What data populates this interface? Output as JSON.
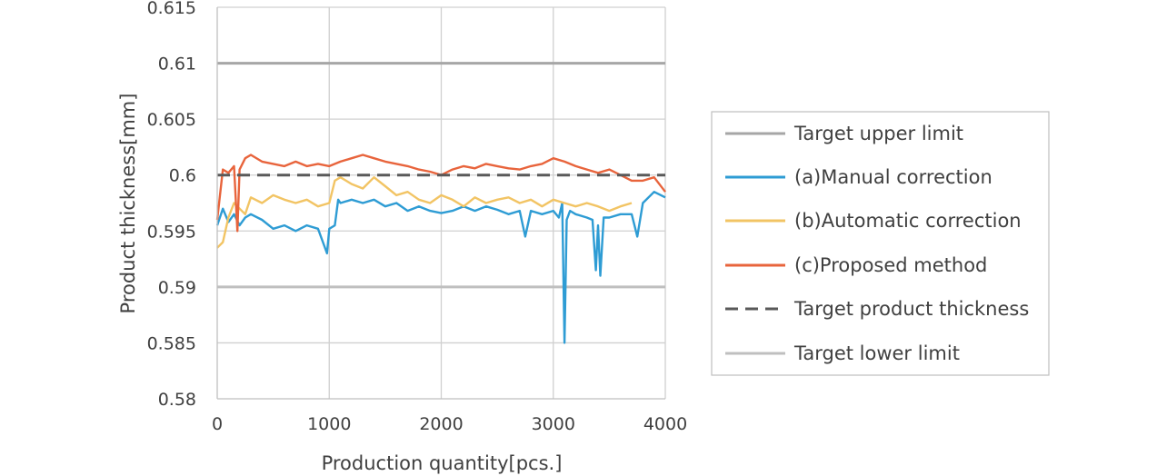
{
  "chart_data": {
    "type": "line",
    "title": "",
    "xlabel": "Production quantity[pcs.]",
    "ylabel": "Product thickness[mm]",
    "xlim": [
      0,
      4000
    ],
    "ylim": [
      0.58,
      0.615
    ],
    "x_ticks": [
      0,
      1000,
      2000,
      3000,
      4000
    ],
    "x_tick_labels": [
      "0",
      "1000",
      "2000",
      "3000",
      "4000"
    ],
    "y_ticks": [
      0.58,
      0.585,
      0.59,
      0.595,
      0.6,
      0.605,
      0.61,
      0.615
    ],
    "y_tick_labels": [
      "0.58",
      "0.585",
      "0.59",
      "0.595",
      "0.6",
      "0.605",
      "0.61",
      "0.615"
    ],
    "grid": true,
    "legend_position": "right",
    "series": [
      {
        "name": "Target upper limit",
        "style": "solid",
        "color": "#A6A6A6",
        "x": [
          0,
          4000
        ],
        "y": [
          0.61,
          0.61
        ]
      },
      {
        "name": "(a)Manual correction",
        "style": "solid",
        "color": "#2E9CD4",
        "x": [
          0,
          50,
          100,
          150,
          200,
          250,
          300,
          400,
          500,
          600,
          700,
          800,
          900,
          980,
          1000,
          1050,
          1080,
          1100,
          1200,
          1300,
          1400,
          1500,
          1600,
          1700,
          1800,
          1900,
          2000,
          2100,
          2200,
          2300,
          2400,
          2500,
          2600,
          2700,
          2750,
          2800,
          2900,
          3000,
          3050,
          3080,
          3100,
          3120,
          3150,
          3200,
          3300,
          3350,
          3380,
          3400,
          3420,
          3450,
          3500,
          3600,
          3700,
          3750,
          3800,
          3900,
          4000
        ],
        "y": [
          0.5955,
          0.597,
          0.5958,
          0.5965,
          0.5955,
          0.5962,
          0.5965,
          0.596,
          0.5952,
          0.5955,
          0.595,
          0.5955,
          0.5952,
          0.593,
          0.5952,
          0.5955,
          0.5978,
          0.5975,
          0.5978,
          0.5975,
          0.5978,
          0.5972,
          0.5975,
          0.5968,
          0.5972,
          0.5968,
          0.5966,
          0.5968,
          0.5972,
          0.5968,
          0.5972,
          0.5969,
          0.5965,
          0.5968,
          0.5945,
          0.5968,
          0.5965,
          0.5968,
          0.5962,
          0.5975,
          0.585,
          0.596,
          0.5968,
          0.5965,
          0.5962,
          0.596,
          0.5915,
          0.5955,
          0.591,
          0.5962,
          0.5962,
          0.5965,
          0.5965,
          0.5945,
          0.5975,
          0.5985,
          0.598
        ]
      },
      {
        "name": "(b)Automatic correction",
        "style": "solid",
        "color": "#F2C464",
        "x": [
          0,
          50,
          100,
          150,
          200,
          250,
          300,
          400,
          500,
          600,
          700,
          800,
          900,
          1000,
          1050,
          1100,
          1200,
          1300,
          1400,
          1500,
          1600,
          1700,
          1800,
          1900,
          2000,
          2100,
          2200,
          2300,
          2400,
          2500,
          2600,
          2700,
          2800,
          2900,
          3000,
          3100,
          3200,
          3300,
          3400,
          3500,
          3600,
          3700
        ],
        "y": [
          0.5935,
          0.594,
          0.5962,
          0.5975,
          0.597,
          0.5965,
          0.598,
          0.5975,
          0.5982,
          0.5978,
          0.5975,
          0.5978,
          0.5972,
          0.5975,
          0.5995,
          0.5998,
          0.5992,
          0.5988,
          0.5998,
          0.599,
          0.5982,
          0.5985,
          0.5978,
          0.5975,
          0.5982,
          0.5978,
          0.5972,
          0.598,
          0.5975,
          0.5978,
          0.598,
          0.5975,
          0.5978,
          0.5972,
          0.5978,
          0.5975,
          0.5972,
          0.5975,
          0.5972,
          0.5968,
          0.5972,
          0.5975
        ]
      },
      {
        "name": "(c)Proposed method",
        "style": "solid",
        "color": "#E8643C",
        "x": [
          0,
          50,
          100,
          150,
          180,
          200,
          250,
          300,
          400,
          500,
          600,
          700,
          800,
          900,
          1000,
          1100,
          1200,
          1300,
          1400,
          1500,
          1600,
          1700,
          1800,
          1900,
          2000,
          2100,
          2200,
          2300,
          2400,
          2500,
          2600,
          2700,
          2800,
          2900,
          3000,
          3100,
          3200,
          3300,
          3400,
          3500,
          3600,
          3700,
          3800,
          3900,
          4000
        ],
        "y": [
          0.596,
          0.6005,
          0.6002,
          0.6008,
          0.595,
          0.6005,
          0.6015,
          0.6018,
          0.6012,
          0.601,
          0.6008,
          0.6012,
          0.6008,
          0.601,
          0.6008,
          0.6012,
          0.6015,
          0.6018,
          0.6015,
          0.6012,
          0.601,
          0.6008,
          0.6005,
          0.6003,
          0.6,
          0.6005,
          0.6008,
          0.6006,
          0.601,
          0.6008,
          0.6006,
          0.6005,
          0.6008,
          0.601,
          0.6015,
          0.6012,
          0.6008,
          0.6005,
          0.6002,
          0.6005,
          0.6,
          0.5995,
          0.5995,
          0.5998,
          0.5985
        ]
      },
      {
        "name": "Target product thickness",
        "style": "dashed",
        "color": "#595959",
        "x": [
          0,
          4000
        ],
        "y": [
          0.6,
          0.6
        ]
      },
      {
        "name": "Target lower limit",
        "style": "solid",
        "color": "#BFBFBF",
        "x": [
          0,
          4000
        ],
        "y": [
          0.59,
          0.59
        ]
      }
    ]
  }
}
